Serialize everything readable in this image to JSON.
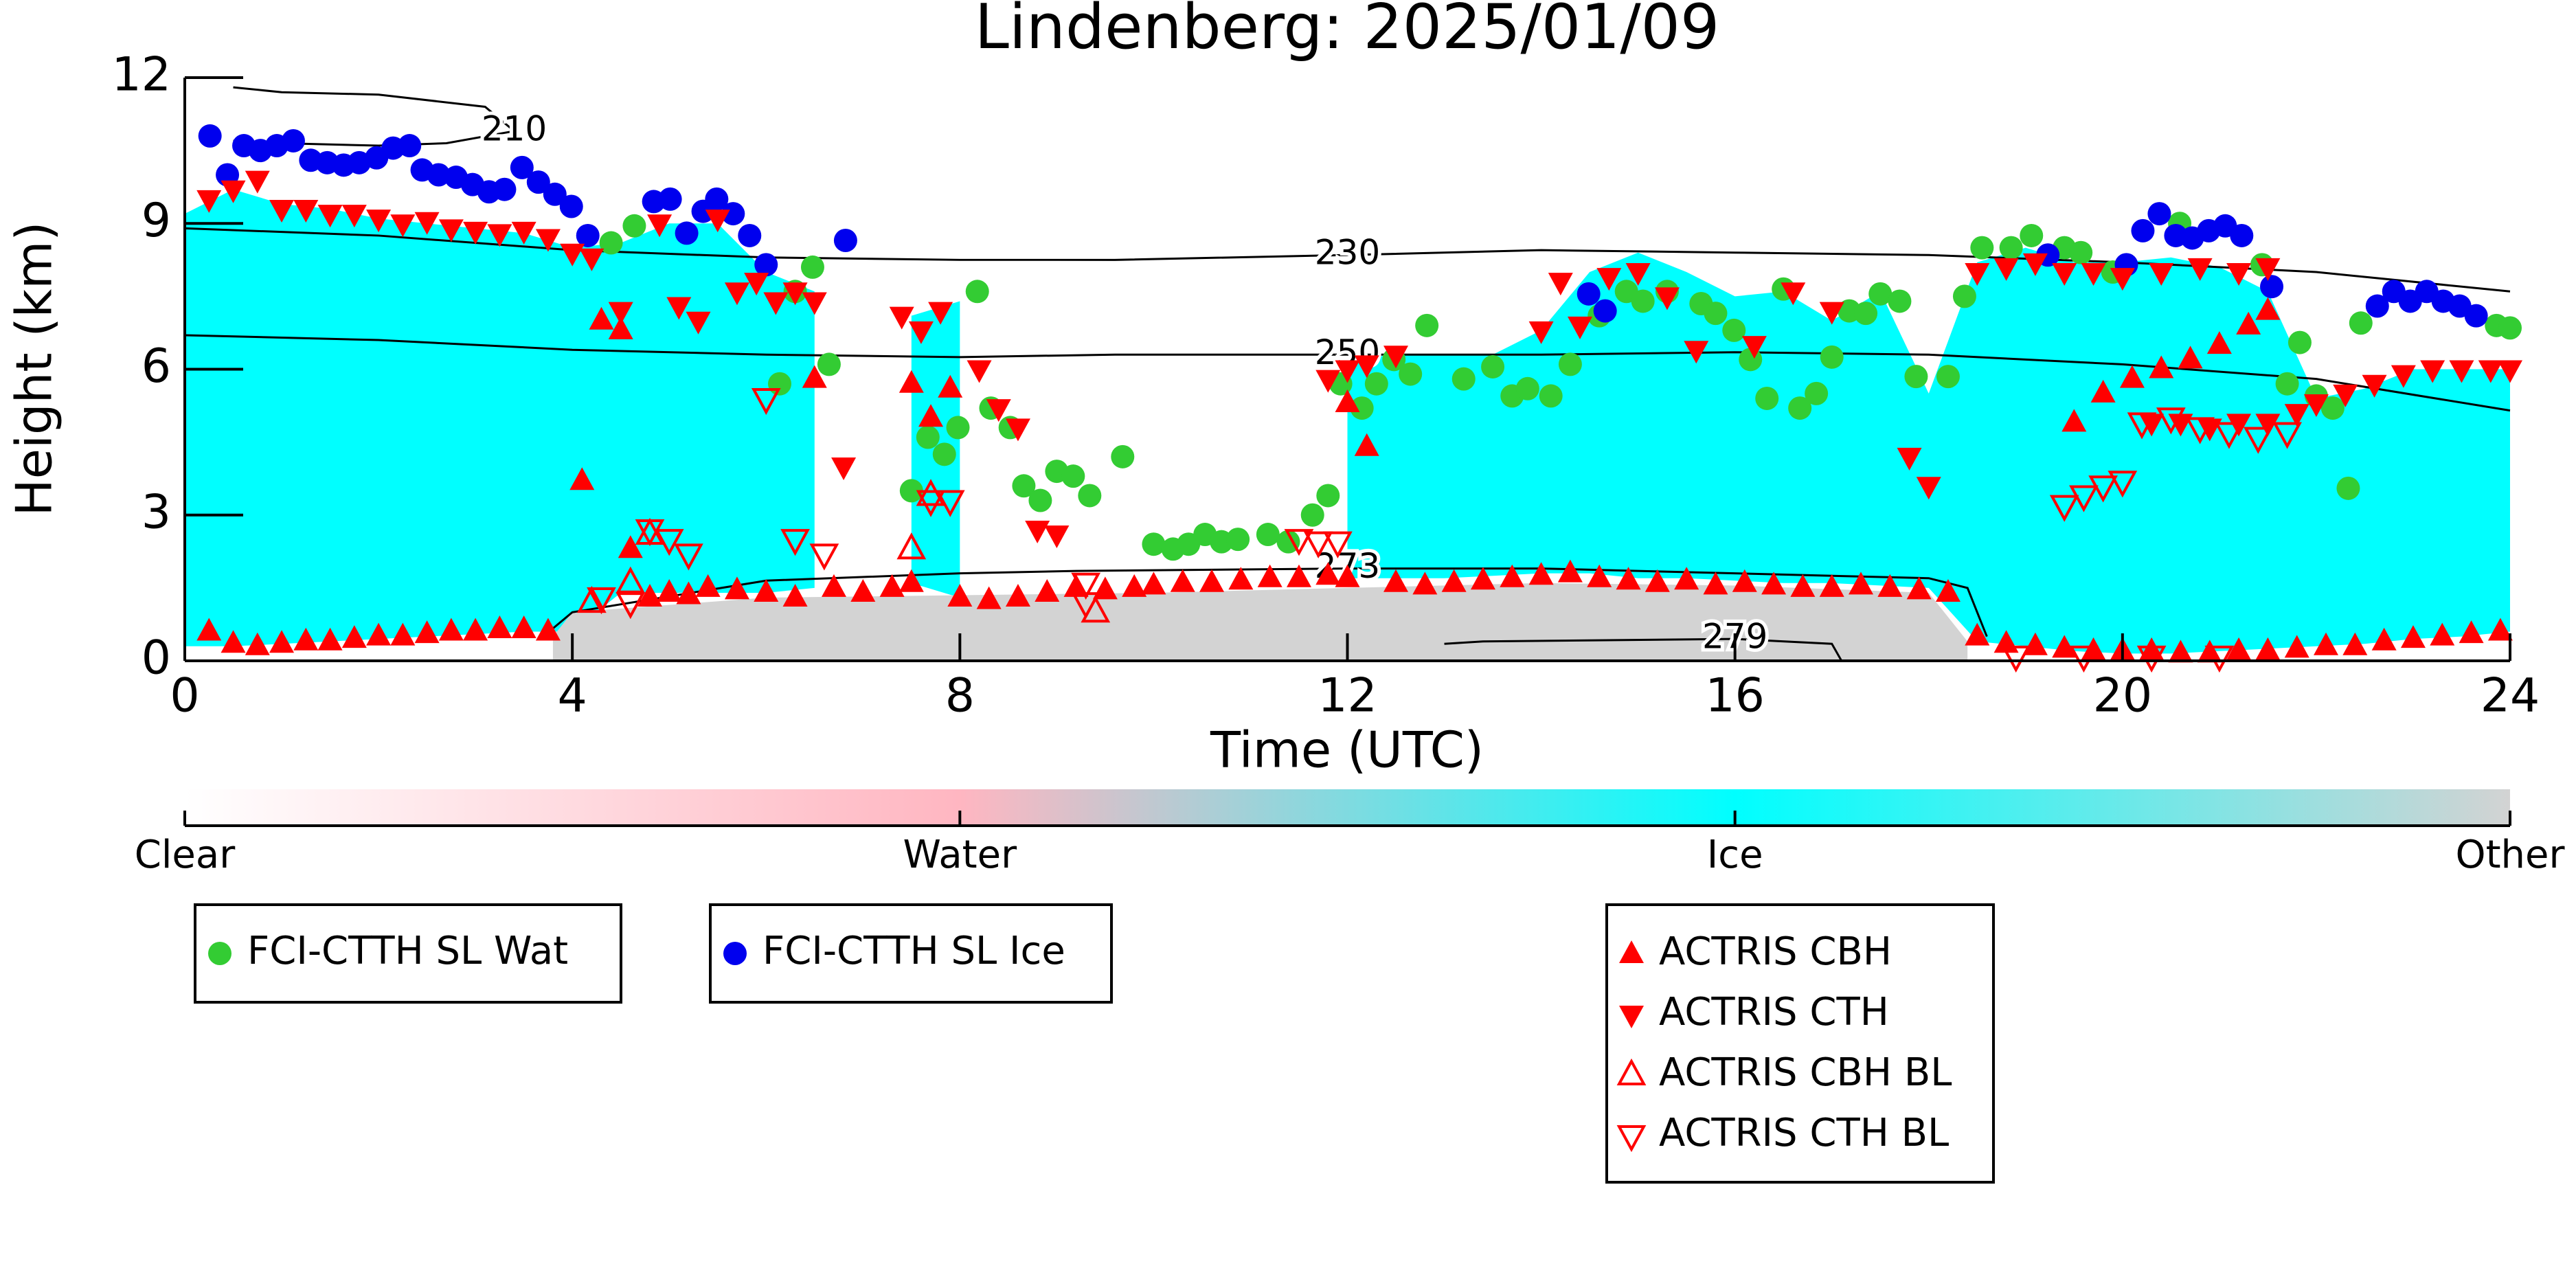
{
  "chart_data": {
    "type": "scatter",
    "title": "Lindenberg: 2025/01/09",
    "x_label": "Time (UTC)",
    "y_label": "Height (km)",
    "xlim": [
      0,
      24
    ],
    "xticks": [
      0,
      4,
      8,
      12,
      16,
      20,
      24
    ],
    "ylim": [
      0,
      12
    ],
    "yticks": [
      0,
      3,
      6,
      9,
      12
    ],
    "colorbar": [
      {
        "name": "Clear",
        "color": "#ffffff"
      },
      {
        "name": "Water",
        "color": "#ffb6c1"
      },
      {
        "name": "Ice",
        "color": "#00ffff",
        "x": [
          0,
          0.5,
          1,
          1.5,
          2,
          2.5,
          3,
          3.5,
          4,
          4.5,
          5,
          5.5,
          6,
          6.5,
          7,
          7.5,
          8,
          8.5,
          9,
          9.5,
          10,
          10.5,
          11,
          11.5,
          12,
          12.5,
          13,
          13.5,
          14,
          14.5,
          15,
          15.5,
          16,
          16.5,
          17,
          17.5,
          18,
          18.5,
          19,
          19.5,
          20,
          20.5,
          21,
          21.5,
          22,
          22.5,
          23,
          23.5,
          24
        ],
        "top": [
          9.2,
          9.7,
          9.4,
          9.3,
          9.1,
          9.0,
          8.9,
          8.8,
          8.5,
          8.6,
          9.0,
          9.0,
          8.0,
          7.6,
          null,
          7.1,
          7.4,
          null,
          null,
          null,
          null,
          null,
          null,
          null,
          6.2,
          6.3,
          6.3,
          6.3,
          6.8,
          8.0,
          8.4,
          8.0,
          7.5,
          7.6,
          7.0,
          7.6,
          5.5,
          8.2,
          8.5,
          8.2,
          8.2,
          8.3,
          8.1,
          7.6,
          5.4,
          5.6,
          6.0,
          6.0,
          6.0
        ],
        "base": [
          0.3,
          0.3,
          0.35,
          0.4,
          0.45,
          0.5,
          0.55,
          0.6,
          0.6,
          1.4,
          1.4,
          1.4,
          1.4,
          1.5,
          null,
          1.6,
          1.3,
          null,
          null,
          null,
          null,
          null,
          null,
          null,
          1.7,
          1.7,
          1.7,
          1.75,
          1.8,
          1.8,
          1.7,
          1.7,
          1.65,
          1.6,
          1.6,
          1.55,
          1.5,
          0.4,
          0.3,
          0.2,
          0.15,
          0.15,
          0.2,
          0.25,
          0.3,
          0.35,
          0.45,
          0.5,
          0.6
        ]
      },
      {
        "name": "Other",
        "color": "#d3d3d3",
        "x": [
          3.8,
          4,
          6,
          8,
          10,
          12,
          14,
          16,
          18,
          18.4
        ],
        "top": [
          0.5,
          1.0,
          1.3,
          1.35,
          1.4,
          1.5,
          1.6,
          1.55,
          1.4,
          0.4
        ],
        "base": [
          0,
          0,
          0,
          0,
          0,
          0,
          0,
          0,
          0,
          0
        ]
      }
    ],
    "contours": [
      {
        "level": 210,
        "x": [
          0.5,
          1,
          2,
          2.7,
          3.4,
          3.1,
          2,
          1,
          0.5
        ],
        "y": [
          10.7,
          10.65,
          10.6,
          10.65,
          10.9,
          11.4,
          11.65,
          11.7,
          11.8
        ]
      },
      {
        "level": 230,
        "x": [
          0,
          2,
          4,
          6,
          8,
          9.6,
          12,
          14,
          16,
          18,
          20,
          22,
          24
        ],
        "y": [
          8.9,
          8.75,
          8.45,
          8.3,
          8.25,
          8.25,
          8.35,
          8.45,
          8.4,
          8.35,
          8.2,
          8.0,
          7.6
        ]
      },
      {
        "level": 250,
        "x": [
          0,
          2,
          4,
          6,
          8,
          9.6,
          12,
          14,
          16,
          18,
          20,
          22,
          24
        ],
        "y": [
          6.7,
          6.6,
          6.4,
          6.3,
          6.25,
          6.3,
          6.3,
          6.3,
          6.35,
          6.3,
          6.1,
          5.8,
          5.15
        ]
      },
      {
        "level": 273,
        "x": [
          3.7,
          4,
          6,
          8,
          9.2,
          12,
          14,
          16,
          18,
          18.4,
          18.6
        ],
        "y": [
          0.5,
          1.0,
          1.65,
          1.8,
          1.85,
          1.9,
          1.9,
          1.8,
          1.7,
          1.5,
          0.5
        ]
      },
      {
        "level": 279,
        "x": [
          13,
          13.4,
          16,
          17,
          17.1
        ],
        "y": [
          0.35,
          0.4,
          0.45,
          0.35,
          0
        ]
      }
    ],
    "series": [
      {
        "name": "FCI-CTTH SL Wat",
        "color": "#33cc33",
        "marker": "circle",
        "filled": true,
        "x": [
          4.4,
          4.64,
          6.14,
          6.3,
          6.48,
          6.65,
          7.5,
          7.67,
          7.84,
          7.98,
          8.18,
          8.32,
          8.52,
          8.66,
          8.83,
          9.0,
          9.17,
          9.34,
          9.68,
          10.0,
          10.2,
          10.36,
          10.53,
          10.7,
          10.87,
          11.18,
          11.39,
          11.64,
          11.8,
          11.93,
          12.15,
          12.3,
          12.48,
          12.65,
          12.82,
          13.2,
          13.5,
          13.7,
          13.86,
          14.1,
          14.3,
          14.6,
          14.88,
          15.05,
          15.3,
          15.65,
          15.8,
          15.99,
          16.16,
          16.33,
          16.5,
          16.67,
          16.84,
          17.0,
          17.18,
          17.35,
          17.5,
          17.7,
          17.87,
          18.2,
          18.37,
          18.55,
          18.85,
          19.06,
          19.4,
          19.57,
          19.9,
          20.59,
          21.44,
          21.7,
          21.83,
          22.0,
          22.17,
          22.33,
          22.46,
          23.86,
          24.0
        ],
        "values": [
          8.6,
          8.95,
          5.7,
          7.6,
          8.1,
          6.1,
          3.5,
          4.6,
          4.25,
          4.8,
          7.6,
          5.2,
          4.8,
          3.6,
          3.3,
          3.9,
          3.8,
          3.4,
          4.2,
          2.4,
          2.3,
          2.4,
          2.6,
          2.45,
          2.5,
          2.6,
          2.45,
          3.0,
          3.4,
          5.7,
          5.2,
          5.7,
          6.2,
          5.9,
          6.9,
          5.8,
          6.05,
          5.45,
          5.6,
          5.45,
          6.1,
          7.1,
          7.6,
          7.4,
          7.6,
          7.35,
          7.15,
          6.8,
          6.2,
          5.4,
          7.65,
          5.2,
          5.5,
          6.25,
          7.2,
          7.15,
          7.55,
          7.4,
          5.85,
          5.85,
          7.5,
          8.5,
          8.5,
          8.75,
          8.5,
          8.4,
          8.0,
          9.0,
          8.15,
          5.7,
          6.55,
          5.45,
          5.2,
          3.55,
          6.95,
          6.9,
          6.85
        ]
      },
      {
        "name": "FCI-CTTH SL Ice",
        "color": "#0000ee",
        "marker": "circle",
        "filled": true,
        "x": [
          0.26,
          0.44,
          0.61,
          0.78,
          0.95,
          1.12,
          1.3,
          1.47,
          1.64,
          1.8,
          1.98,
          2.15,
          2.32,
          2.45,
          2.62,
          2.8,
          2.97,
          3.14,
          3.3,
          3.48,
          3.65,
          3.82,
          3.99,
          4.16,
          4.84,
          5.01,
          5.18,
          5.35,
          5.49,
          5.66,
          5.83,
          6.0,
          6.82,
          14.49,
          14.66,
          19.23,
          20.04,
          20.21,
          20.38,
          20.55,
          20.72,
          20.89,
          21.06,
          21.23,
          21.54,
          22.63,
          22.8,
          22.97,
          23.14,
          23.31,
          23.48,
          23.65
        ],
        "values": [
          10.8,
          10.0,
          10.6,
          10.5,
          10.6,
          10.7,
          10.3,
          10.25,
          10.2,
          10.25,
          10.35,
          10.55,
          10.6,
          10.1,
          10.0,
          9.95,
          9.8,
          9.65,
          9.7,
          10.15,
          9.85,
          9.6,
          9.35,
          8.75,
          9.45,
          9.5,
          8.8,
          9.25,
          9.5,
          9.2,
          8.75,
          8.15,
          8.65,
          7.55,
          7.2,
          8.35,
          8.15,
          8.85,
          9.2,
          8.75,
          8.7,
          8.85,
          8.95,
          8.75,
          7.7,
          7.3,
          7.6,
          7.4,
          7.6,
          7.4,
          7.3,
          7.1
        ]
      },
      {
        "name": "ACTRIS CBH",
        "color": "#ff0000",
        "marker": "triangle-up",
        "filled": true,
        "x": [
          0.25,
          0.5,
          0.75,
          1.0,
          1.25,
          1.5,
          1.75,
          2.0,
          2.25,
          2.5,
          2.75,
          3.0,
          3.25,
          3.5,
          3.75,
          4.1,
          4.3,
          4.5,
          4.6,
          4.8,
          5.0,
          5.2,
          5.4,
          5.7,
          6.0,
          6.3,
          6.5,
          6.7,
          7.0,
          7.3,
          7.5,
          7.5,
          7.7,
          7.9,
          8.0,
          8.3,
          8.6,
          8.9,
          9.2,
          9.5,
          9.8,
          10.0,
          10.3,
          10.6,
          10.9,
          11.2,
          11.5,
          11.8,
          12.0,
          12.0,
          12.2,
          12.5,
          12.8,
          13.1,
          13.4,
          13.7,
          14.0,
          14.3,
          14.6,
          14.9,
          15.2,
          15.5,
          15.8,
          16.1,
          16.4,
          16.7,
          17.0,
          17.3,
          17.6,
          17.9,
          18.2,
          18.5,
          18.8,
          19.1,
          19.4,
          19.7,
          20.0,
          20.3,
          20.6,
          20.9,
          21.2,
          21.5,
          21.8,
          22.1,
          22.4,
          22.7,
          23.0,
          23.3,
          23.6,
          23.9,
          19.5,
          19.8,
          20.1,
          20.4,
          20.7,
          21.0,
          21.3,
          21.5
        ],
        "values": [
          0.6,
          0.35,
          0.3,
          0.35,
          0.4,
          0.4,
          0.45,
          0.5,
          0.5,
          0.55,
          0.6,
          0.6,
          0.65,
          0.65,
          0.6,
          3.7,
          7.0,
          6.8,
          2.3,
          1.3,
          1.4,
          1.35,
          1.5,
          1.45,
          1.4,
          1.3,
          5.8,
          1.5,
          1.4,
          1.5,
          1.6,
          5.7,
          5.0,
          5.6,
          1.3,
          1.25,
          1.3,
          1.4,
          1.5,
          1.45,
          1.5,
          1.55,
          1.6,
          1.6,
          1.65,
          1.7,
          1.7,
          1.75,
          1.7,
          5.3,
          4.4,
          1.6,
          1.55,
          1.6,
          1.65,
          1.7,
          1.75,
          1.8,
          1.7,
          1.65,
          1.6,
          1.65,
          1.55,
          1.6,
          1.55,
          1.5,
          1.5,
          1.55,
          1.5,
          1.45,
          1.4,
          0.5,
          0.35,
          0.3,
          0.25,
          0.2,
          0.2,
          0.2,
          0.15,
          0.15,
          0.2,
          0.2,
          0.25,
          0.3,
          0.3,
          0.4,
          0.45,
          0.5,
          0.55,
          0.6,
          4.9,
          5.5,
          5.8,
          6.0,
          6.2,
          6.5,
          6.9,
          7.2
        ]
      },
      {
        "name": "ACTRIS CTH",
        "color": "#ff0000",
        "marker": "triangle-down",
        "filled": true,
        "x": [
          0.25,
          0.5,
          0.75,
          1.0,
          1.25,
          1.5,
          1.75,
          2.0,
          2.25,
          2.5,
          2.75,
          3.0,
          3.25,
          3.5,
          3.75,
          4.0,
          4.2,
          4.5,
          4.9,
          5.1,
          5.3,
          5.5,
          5.7,
          5.9,
          6.1,
          6.3,
          6.5,
          6.8,
          7.4,
          7.6,
          7.8,
          8.2,
          8.4,
          8.6,
          8.8,
          9.0,
          11.8,
          12.0,
          12.2,
          12.5,
          14.0,
          14.2,
          14.4,
          14.7,
          15.0,
          15.3,
          15.6,
          16.2,
          16.6,
          17.0,
          17.8,
          18.0,
          18.5,
          18.8,
          19.1,
          19.4,
          19.7,
          20.0,
          20.4,
          20.8,
          21.2,
          21.5,
          22.0,
          22.3,
          22.6,
          22.9,
          23.2,
          23.5,
          23.8,
          24.0,
          20.3,
          20.6,
          20.9,
          21.2,
          21.5,
          21.8
        ],
        "values": [
          9.5,
          9.7,
          9.9,
          9.3,
          9.3,
          9.2,
          9.2,
          9.1,
          9.0,
          9.05,
          8.9,
          8.85,
          8.8,
          8.85,
          8.7,
          8.4,
          8.3,
          7.2,
          9.0,
          7.3,
          7.0,
          9.1,
          7.6,
          7.8,
          7.4,
          7.6,
          7.4,
          4.0,
          7.1,
          6.8,
          7.2,
          6.0,
          5.2,
          4.8,
          2.7,
          2.6,
          5.8,
          6.0,
          6.1,
          6.3,
          6.8,
          7.8,
          6.9,
          7.9,
          8.0,
          7.5,
          6.4,
          6.5,
          7.6,
          7.2,
          4.2,
          3.6,
          8.0,
          8.1,
          8.2,
          8.0,
          8.0,
          7.9,
          8.0,
          8.1,
          8.0,
          8.1,
          5.3,
          5.5,
          5.7,
          5.9,
          6.0,
          6.0,
          6.0,
          6.0,
          4.9,
          4.9,
          4.8,
          4.9,
          4.9,
          5.1
        ]
      },
      {
        "name": "ACTRIS CBH BL",
        "color": "#ff0000",
        "marker": "triangle-up",
        "filled": false,
        "x": [
          4.2,
          4.6,
          4.8,
          7.5,
          7.7,
          9.4
        ],
        "values": [
          1.2,
          1.6,
          2.6,
          2.3,
          3.4,
          1.0
        ]
      },
      {
        "name": "ACTRIS CTH BL",
        "color": "#ff0000",
        "marker": "triangle-down",
        "filled": false,
        "x": [
          4.3,
          4.6,
          4.8,
          5.0,
          5.2,
          6.0,
          6.3,
          6.6,
          7.7,
          7.9,
          9.3,
          9.3,
          11.5,
          11.7,
          11.9,
          18.9,
          19.6,
          20.3,
          21.0,
          19.4,
          19.6,
          19.8,
          20.0,
          20.2,
          20.5,
          20.8,
          21.1,
          21.4,
          21.7
        ],
        "values": [
          1.3,
          1.2,
          2.7,
          2.5,
          2.2,
          5.4,
          2.5,
          2.2,
          3.3,
          3.3,
          1.6,
          1.2,
          2.5,
          2.45,
          2.45,
          0.1,
          0.1,
          0.1,
          0.1,
          3.2,
          3.4,
          3.6,
          3.7,
          4.9,
          5.0,
          4.8,
          4.7,
          4.6,
          4.7
        ]
      }
    ]
  }
}
